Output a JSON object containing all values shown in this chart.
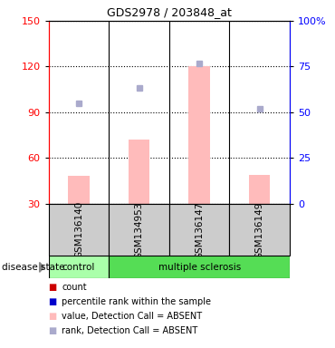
{
  "title": "GDS2978 / 203848_at",
  "samples": [
    "GSM136140",
    "GSM134953",
    "GSM136147",
    "GSM136149"
  ],
  "ylim_left": [
    30,
    150
  ],
  "ylim_right": [
    0,
    100
  ],
  "yticks_left": [
    30,
    60,
    90,
    120,
    150
  ],
  "yticks_right": [
    0,
    25,
    50,
    75,
    100
  ],
  "bar_values": [
    48,
    72,
    120,
    49
  ],
  "rank_values": [
    96,
    106,
    122,
    92
  ],
  "bar_color": "#ffbbbb",
  "rank_color": "#aaaacc",
  "legend_items": [
    {
      "color": "#cc0000",
      "label": "count"
    },
    {
      "color": "#0000cc",
      "label": "percentile rank within the sample"
    },
    {
      "color": "#ffbbbb",
      "label": "value, Detection Call = ABSENT"
    },
    {
      "color": "#aaaacc",
      "label": "rank, Detection Call = ABSENT"
    }
  ],
  "group_colors_ctrl": "#aaffaa",
  "group_colors_ms": "#55dd55",
  "figsize": [
    3.7,
    3.84
  ],
  "dpi": 100
}
